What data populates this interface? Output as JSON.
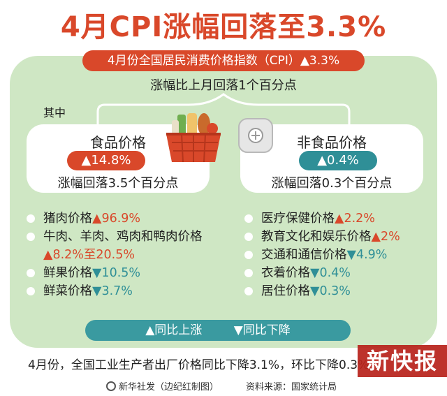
{
  "title": "4月CPI涨幅回落至3.3%",
  "cpi_pill": "4月份全国居民消费价格指数（CPI）▲3.3%",
  "cpi_sub": "涨幅比上月回落1个百分点",
  "qizhong": "其中",
  "food": {
    "title": "食品价格",
    "badge": "▲14.8%",
    "note": "涨幅回落3.5个百分点"
  },
  "nonfood": {
    "title": "非食品价格",
    "badge": "▲0.4%",
    "note": "涨幅回落0.3个百分点"
  },
  "food_items": [
    {
      "label": "猪肉价格",
      "value": "▲96.9%"
    },
    {
      "label": "牛肉、羊肉、鸡肉和鸭肉价格",
      "value": "▲8.2%至20.5%"
    },
    {
      "label": "鲜果价格",
      "value": "▼10.5%"
    },
    {
      "label": "鲜菜价格",
      "value": "▼3.7%"
    }
  ],
  "nonfood_items": [
    {
      "label": "医疗保健价格",
      "value": "▲2.2%"
    },
    {
      "label": "教育文化和娱乐价格",
      "value": "▲2%"
    },
    {
      "label": "交通和通信价格",
      "value": "▼4.9%"
    },
    {
      "label": "衣着价格",
      "value": "▼0.4%"
    },
    {
      "label": "居住价格",
      "value": "▼0.3%"
    }
  ],
  "legend": {
    "up": "▲同比上涨",
    "down": "▼同比下降"
  },
  "footer": "4月份，全国工业生产者出厂价格同比下降3.1%，环比下降0.3%",
  "watermark": "新快报",
  "credit_left": "新华社发（边纪红制图）",
  "credit_right": "资料来源：国家统计局",
  "colors": {
    "red": "#d9482a",
    "teal": "#2f8f97",
    "panel": "#cfe7c4"
  }
}
